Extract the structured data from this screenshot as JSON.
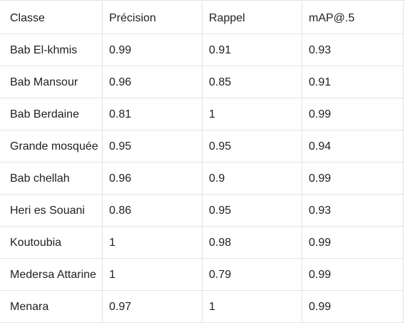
{
  "table": {
    "headers": [
      "Classe",
      "Précision",
      "Rappel",
      "mAP@.5"
    ],
    "rows": [
      [
        "Bab El-khmis",
        "0.99",
        "0.91",
        "0.93"
      ],
      [
        "Bab Mansour",
        "0.96",
        "0.85",
        "0.91"
      ],
      [
        "Bab Berdaine",
        "0.81",
        "1",
        "0.99"
      ],
      [
        "Grande mosquée",
        "0.95",
        "0.95",
        "0.94"
      ],
      [
        "Bab chellah",
        "0.96",
        "0.9",
        "0.99"
      ],
      [
        "Heri es Souani",
        "0.86",
        "0.95",
        "0.93"
      ],
      [
        "Koutoubia",
        "1",
        "0.98",
        "0.99"
      ],
      [
        "Medersa Attarine",
        "1",
        "0.79",
        "0.99"
      ],
      [
        "Menara",
        "0.97",
        "1",
        "0.99"
      ]
    ]
  }
}
